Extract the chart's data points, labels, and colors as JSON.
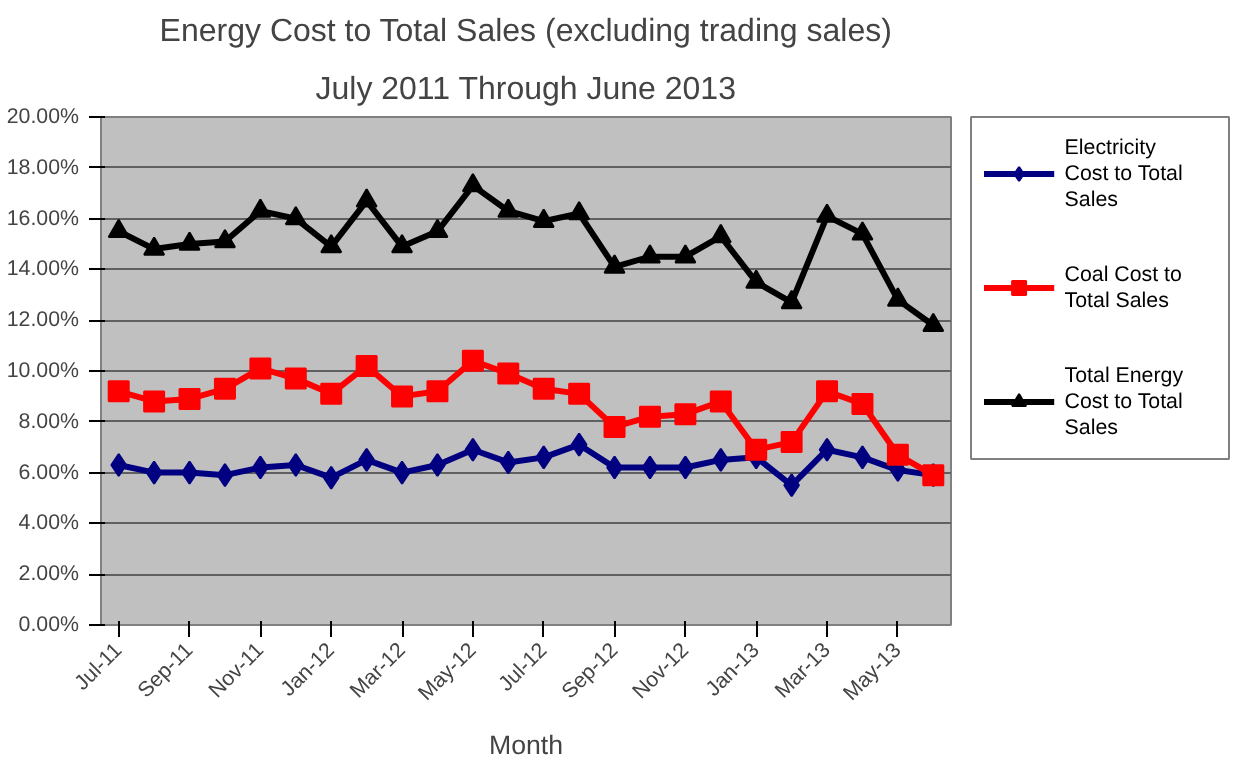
{
  "chart_data": {
    "type": "line",
    "title": "Energy Cost to Total Sales (excluding trading sales)",
    "subtitle": "July 2011 Through June 2013",
    "xlabel": "Month",
    "categories": [
      "Jul-11",
      null,
      "Sep-11",
      null,
      "Nov-11",
      null,
      "Jan-12",
      null,
      "Mar-12",
      null,
      "May-12",
      null,
      "Jul-12",
      null,
      "Sep-12",
      null,
      "Nov-12",
      null,
      "Jan-13",
      null,
      "Mar-13",
      null,
      "May-13",
      null
    ],
    "series": [
      {
        "name": "Electricity Cost to Total Sales",
        "color": "#000080",
        "marker": "diamond",
        "values": [
          6.3,
          6.0,
          6.0,
          5.9,
          6.2,
          6.3,
          5.8,
          6.5,
          6.0,
          6.3,
          6.9,
          6.4,
          6.6,
          7.1,
          6.2,
          6.2,
          6.2,
          6.5,
          6.6,
          5.5,
          6.9,
          6.6,
          6.1,
          5.9
        ]
      },
      {
        "name": "Coal Cost to Total Sales",
        "color": "#ff0000",
        "marker": "square",
        "values": [
          9.2,
          8.8,
          8.9,
          9.3,
          10.1,
          9.7,
          9.1,
          10.2,
          9.0,
          9.2,
          10.4,
          9.9,
          9.3,
          9.1,
          7.8,
          8.2,
          8.3,
          8.8,
          6.9,
          7.2,
          9.2,
          8.7,
          6.7,
          5.9
        ]
      },
      {
        "name": "Total Energy Cost to Total Sales",
        "color": "#000000",
        "marker": "triangle",
        "values": [
          15.5,
          14.8,
          15.0,
          15.1,
          16.3,
          16.0,
          14.9,
          16.7,
          14.9,
          15.5,
          17.3,
          16.3,
          15.9,
          16.2,
          14.1,
          14.5,
          14.5,
          15.3,
          13.5,
          12.7,
          16.1,
          15.4,
          12.8,
          11.8
        ]
      }
    ],
    "ylim": [
      0,
      20
    ],
    "yticks": [
      {
        "value": 0,
        "label": "0.00%"
      },
      {
        "value": 2,
        "label": "2.00%"
      },
      {
        "value": 4,
        "label": "4.00%"
      },
      {
        "value": 6,
        "label": "6.00%"
      },
      {
        "value": 8,
        "label": "8.00%"
      },
      {
        "value": 10,
        "label": "10.00%"
      },
      {
        "value": 12,
        "label": "12.00%"
      },
      {
        "value": 14,
        "label": "14.00%"
      },
      {
        "value": 16,
        "label": "16.00%"
      },
      {
        "value": 18,
        "label": "18.00%"
      },
      {
        "value": 20,
        "label": "20.00%"
      }
    ],
    "grid": "y",
    "legend": "right",
    "line_style": "solid"
  }
}
